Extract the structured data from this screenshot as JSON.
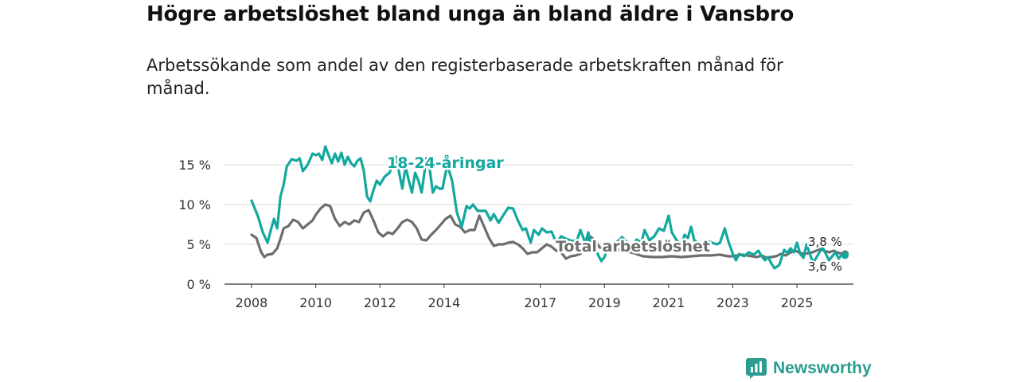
{
  "title": "Högre arbetslöshet bland unga än bland äldre i Vansbro",
  "subtitle": "Arbetssökande som andel av den registerbaserade arbetskraften månad för månad.",
  "brand": {
    "name": "Newsworthy",
    "icon": "newsworthy-logo-icon",
    "color": "#2a9d8f"
  },
  "chart_data": {
    "type": "line",
    "title": "Högre arbetslöshet bland unga än bland äldre i Vansbro",
    "xlabel": "",
    "ylabel": "",
    "xlim": [
      2008,
      2026.5
    ],
    "ylim": [
      0,
      17
    ],
    "y_ticks": [
      0,
      5,
      10,
      15
    ],
    "y_tick_labels": [
      "0 %",
      "5 %",
      "10 %",
      "15 %"
    ],
    "x_ticks": [
      2008,
      2010,
      2012,
      2014,
      2017,
      2019,
      2021,
      2023,
      2025
    ],
    "x_tick_labels": [
      "2008",
      "2010",
      "2012",
      "2014",
      "2017",
      "2019",
      "2021",
      "2023",
      "2025"
    ],
    "grid": true,
    "series": [
      {
        "name": "18-24-åringar",
        "color": "#13a89e",
        "end_label": "3,6 %",
        "points": [
          [
            2008.0,
            10.5
          ],
          [
            2008.2,
            8.5
          ],
          [
            2008.35,
            6.5
          ],
          [
            2008.5,
            5.2
          ],
          [
            2008.6,
            6.8
          ],
          [
            2008.7,
            8.2
          ],
          [
            2008.8,
            7.0
          ],
          [
            2008.9,
            11.0
          ],
          [
            2009.0,
            12.5
          ],
          [
            2009.1,
            14.8
          ],
          [
            2009.25,
            15.7
          ],
          [
            2009.4,
            15.5
          ],
          [
            2009.5,
            15.8
          ],
          [
            2009.6,
            14.2
          ],
          [
            2009.75,
            15.0
          ],
          [
            2009.9,
            16.4
          ],
          [
            2010.0,
            16.2
          ],
          [
            2010.1,
            16.4
          ],
          [
            2010.2,
            15.6
          ],
          [
            2010.3,
            17.3
          ],
          [
            2010.4,
            16.2
          ],
          [
            2010.5,
            15.2
          ],
          [
            2010.6,
            16.4
          ],
          [
            2010.7,
            15.4
          ],
          [
            2010.8,
            16.5
          ],
          [
            2010.9,
            15.0
          ],
          [
            2011.0,
            16.0
          ],
          [
            2011.1,
            15.2
          ],
          [
            2011.2,
            14.8
          ],
          [
            2011.3,
            15.5
          ],
          [
            2011.4,
            15.8
          ],
          [
            2011.5,
            14.2
          ],
          [
            2011.6,
            11.0
          ],
          [
            2011.7,
            10.4
          ],
          [
            2011.8,
            11.8
          ],
          [
            2011.9,
            13.0
          ],
          [
            2012.0,
            12.5
          ],
          [
            2012.15,
            13.5
          ],
          [
            2012.3,
            14.0
          ],
          [
            2012.4,
            15.0
          ],
          [
            2012.5,
            16.0
          ],
          [
            2012.6,
            14.0
          ],
          [
            2012.7,
            12.0
          ],
          [
            2012.8,
            14.8
          ],
          [
            2012.9,
            13.0
          ],
          [
            2013.0,
            11.5
          ],
          [
            2013.1,
            14.0
          ],
          [
            2013.2,
            13.0
          ],
          [
            2013.3,
            11.5
          ],
          [
            2013.45,
            15.8
          ],
          [
            2013.55,
            14.5
          ],
          [
            2013.65,
            11.5
          ],
          [
            2013.75,
            12.3
          ],
          [
            2013.85,
            12.0
          ],
          [
            2013.95,
            12.0
          ],
          [
            2014.1,
            15.0
          ],
          [
            2014.25,
            13.0
          ],
          [
            2014.4,
            9.0
          ],
          [
            2014.55,
            7.2
          ],
          [
            2014.7,
            9.8
          ],
          [
            2014.8,
            9.5
          ],
          [
            2014.9,
            10.0
          ],
          [
            2015.05,
            9.2
          ],
          [
            2015.3,
            9.2
          ],
          [
            2015.45,
            8.0
          ],
          [
            2015.55,
            8.8
          ],
          [
            2015.7,
            7.7
          ],
          [
            2015.85,
            8.7
          ],
          [
            2016.0,
            9.6
          ],
          [
            2016.15,
            9.5
          ],
          [
            2016.3,
            8.0
          ],
          [
            2016.45,
            6.8
          ],
          [
            2016.55,
            7.0
          ],
          [
            2016.7,
            5.2
          ],
          [
            2016.8,
            6.8
          ],
          [
            2016.95,
            6.2
          ],
          [
            2017.05,
            7.0
          ],
          [
            2017.2,
            6.5
          ],
          [
            2017.35,
            6.6
          ],
          [
            2017.5,
            5.2
          ],
          [
            2017.65,
            6.0
          ],
          [
            2017.8,
            5.7
          ],
          [
            2018.0,
            5.4
          ],
          [
            2018.15,
            5.6
          ],
          [
            2018.25,
            6.8
          ],
          [
            2018.4,
            5.2
          ],
          [
            2018.5,
            6.5
          ],
          [
            2018.6,
            4.2
          ],
          [
            2018.75,
            4.1
          ],
          [
            2018.9,
            2.9
          ],
          [
            2019.0,
            3.4
          ],
          [
            2019.15,
            5.2
          ],
          [
            2019.3,
            5.0
          ],
          [
            2019.45,
            5.5
          ],
          [
            2019.55,
            5.9
          ],
          [
            2019.7,
            5.3
          ],
          [
            2019.85,
            4.5
          ],
          [
            2020.0,
            5.6
          ],
          [
            2020.15,
            5.2
          ],
          [
            2020.25,
            6.8
          ],
          [
            2020.4,
            5.5
          ],
          [
            2020.55,
            6.0
          ],
          [
            2020.7,
            7.0
          ],
          [
            2020.85,
            6.7
          ],
          [
            2021.0,
            8.6
          ],
          [
            2021.1,
            6.5
          ],
          [
            2021.25,
            5.5
          ],
          [
            2021.4,
            5.0
          ],
          [
            2021.5,
            6.2
          ],
          [
            2021.6,
            5.8
          ],
          [
            2021.7,
            7.2
          ],
          [
            2021.8,
            5.5
          ],
          [
            2022.0,
            5.0
          ],
          [
            2022.2,
            5.5
          ],
          [
            2022.35,
            5.2
          ],
          [
            2022.5,
            5.0
          ],
          [
            2022.6,
            5.2
          ],
          [
            2022.75,
            7.0
          ],
          [
            2022.85,
            5.5
          ],
          [
            2023.0,
            3.8
          ],
          [
            2023.1,
            3.0
          ],
          [
            2023.2,
            3.8
          ],
          [
            2023.35,
            3.5
          ],
          [
            2023.5,
            4.0
          ],
          [
            2023.65,
            3.7
          ],
          [
            2023.8,
            4.2
          ],
          [
            2023.9,
            3.5
          ],
          [
            2024.0,
            3.0
          ],
          [
            2024.1,
            3.4
          ],
          [
            2024.2,
            2.6
          ],
          [
            2024.3,
            2.0
          ],
          [
            2024.45,
            2.4
          ],
          [
            2024.6,
            4.3
          ],
          [
            2024.7,
            3.9
          ],
          [
            2024.8,
            4.5
          ],
          [
            2024.9,
            4.0
          ],
          [
            2025.0,
            5.2
          ],
          [
            2025.1,
            3.8
          ],
          [
            2025.2,
            3.3
          ],
          [
            2025.3,
            5.0
          ],
          [
            2025.4,
            3.8
          ],
          [
            2025.5,
            2.7
          ],
          [
            2025.6,
            3.3
          ],
          [
            2025.7,
            4.0
          ],
          [
            2025.8,
            4.6
          ],
          [
            2025.9,
            3.8
          ],
          [
            2026.0,
            3.0
          ],
          [
            2026.1,
            3.5
          ],
          [
            2026.2,
            4.0
          ],
          [
            2026.3,
            3.2
          ],
          [
            2026.4,
            3.7
          ],
          [
            2026.5,
            3.6
          ]
        ]
      },
      {
        "name": "Total arbetslöshet",
        "color": "#6d6d6d",
        "end_label": "3,8 %",
        "points": [
          [
            2008.0,
            6.2
          ],
          [
            2008.15,
            5.8
          ],
          [
            2008.3,
            4.0
          ],
          [
            2008.4,
            3.4
          ],
          [
            2008.5,
            3.7
          ],
          [
            2008.65,
            3.8
          ],
          [
            2008.8,
            4.5
          ],
          [
            2008.9,
            5.7
          ],
          [
            2009.0,
            7.0
          ],
          [
            2009.15,
            7.3
          ],
          [
            2009.3,
            8.1
          ],
          [
            2009.45,
            7.8
          ],
          [
            2009.6,
            7.0
          ],
          [
            2009.75,
            7.5
          ],
          [
            2009.9,
            8.0
          ],
          [
            2010.0,
            8.7
          ],
          [
            2010.15,
            9.5
          ],
          [
            2010.3,
            10.0
          ],
          [
            2010.45,
            9.8
          ],
          [
            2010.6,
            8.2
          ],
          [
            2010.75,
            7.3
          ],
          [
            2010.9,
            7.8
          ],
          [
            2011.05,
            7.5
          ],
          [
            2011.2,
            8.0
          ],
          [
            2011.35,
            7.8
          ],
          [
            2011.5,
            9.0
          ],
          [
            2011.65,
            9.3
          ],
          [
            2011.8,
            8.0
          ],
          [
            2011.95,
            6.5
          ],
          [
            2012.1,
            6.0
          ],
          [
            2012.25,
            6.5
          ],
          [
            2012.4,
            6.3
          ],
          [
            2012.55,
            7.0
          ],
          [
            2012.7,
            7.8
          ],
          [
            2012.85,
            8.1
          ],
          [
            2013.0,
            7.8
          ],
          [
            2013.15,
            7.0
          ],
          [
            2013.3,
            5.6
          ],
          [
            2013.45,
            5.5
          ],
          [
            2013.6,
            6.2
          ],
          [
            2013.75,
            6.8
          ],
          [
            2013.9,
            7.5
          ],
          [
            2014.05,
            8.2
          ],
          [
            2014.2,
            8.6
          ],
          [
            2014.35,
            7.5
          ],
          [
            2014.5,
            7.2
          ],
          [
            2014.65,
            6.5
          ],
          [
            2014.8,
            6.8
          ],
          [
            2014.95,
            6.8
          ],
          [
            2015.1,
            8.6
          ],
          [
            2015.25,
            7.2
          ],
          [
            2015.4,
            5.8
          ],
          [
            2015.55,
            4.8
          ],
          [
            2015.7,
            5.0
          ],
          [
            2015.85,
            5.0
          ],
          [
            2016.0,
            5.2
          ],
          [
            2016.15,
            5.3
          ],
          [
            2016.3,
            5.0
          ],
          [
            2016.45,
            4.5
          ],
          [
            2016.6,
            3.8
          ],
          [
            2016.75,
            4.0
          ],
          [
            2016.9,
            4.0
          ],
          [
            2017.05,
            4.5
          ],
          [
            2017.2,
            5.0
          ],
          [
            2017.35,
            4.7
          ],
          [
            2017.5,
            4.2
          ],
          [
            2017.65,
            4.0
          ],
          [
            2017.8,
            3.2
          ],
          [
            2017.95,
            3.5
          ],
          [
            2018.1,
            3.6
          ],
          [
            2018.25,
            3.8
          ],
          [
            2018.4,
            5.0
          ],
          [
            2018.55,
            6.0
          ],
          [
            2018.7,
            5.5
          ],
          [
            2018.85,
            4.6
          ],
          [
            2019.0,
            4.5
          ],
          [
            2019.3,
            4.4
          ],
          [
            2019.6,
            4.2
          ],
          [
            2019.9,
            3.9
          ],
          [
            2020.2,
            3.5
          ],
          [
            2020.5,
            3.4
          ],
          [
            2020.8,
            3.4
          ],
          [
            2021.1,
            3.5
          ],
          [
            2021.4,
            3.4
          ],
          [
            2021.7,
            3.5
          ],
          [
            2022.0,
            3.6
          ],
          [
            2022.3,
            3.6
          ],
          [
            2022.6,
            3.7
          ],
          [
            2022.85,
            3.5
          ],
          [
            2023.0,
            3.5
          ],
          [
            2023.15,
            3.6
          ],
          [
            2023.3,
            3.7
          ],
          [
            2023.45,
            3.6
          ],
          [
            2023.6,
            3.5
          ],
          [
            2023.75,
            3.4
          ],
          [
            2023.9,
            3.6
          ],
          [
            2024.05,
            3.3
          ],
          [
            2024.2,
            3.4
          ],
          [
            2024.35,
            3.5
          ],
          [
            2024.5,
            3.8
          ],
          [
            2024.65,
            3.6
          ],
          [
            2024.8,
            4.0
          ],
          [
            2024.95,
            4.2
          ],
          [
            2025.1,
            3.9
          ],
          [
            2025.25,
            3.8
          ],
          [
            2025.4,
            3.9
          ],
          [
            2025.55,
            4.1
          ],
          [
            2025.7,
            4.4
          ],
          [
            2025.85,
            4.2
          ],
          [
            2026.0,
            4.0
          ],
          [
            2026.15,
            4.2
          ],
          [
            2026.3,
            3.9
          ],
          [
            2026.5,
            3.8
          ]
        ]
      }
    ]
  }
}
